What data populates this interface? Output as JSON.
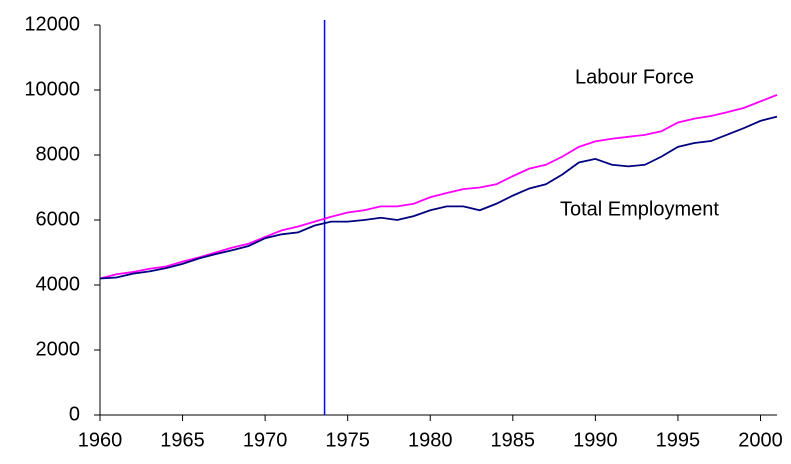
{
  "chart_data": {
    "type": "line",
    "x": [
      1960,
      1961,
      1962,
      1963,
      1964,
      1965,
      1966,
      1967,
      1968,
      1969,
      1970,
      1971,
      1972,
      1973,
      1974,
      1975,
      1976,
      1977,
      1978,
      1979,
      1980,
      1981,
      1982,
      1983,
      1984,
      1985,
      1986,
      1987,
      1988,
      1989,
      1990,
      1991,
      1992,
      1993,
      1994,
      1995,
      1996,
      1997,
      1998,
      1999,
      2000,
      2001
    ],
    "series": [
      {
        "name": "Labour Force",
        "color": "#ff00ff",
        "values": [
          4200,
          4330,
          4400,
          4500,
          4570,
          4720,
          4850,
          5000,
          5150,
          5270,
          5480,
          5680,
          5800,
          5950,
          6100,
          6230,
          6300,
          6420,
          6420,
          6500,
          6700,
          6830,
          6950,
          7000,
          7100,
          7350,
          7580,
          7700,
          7950,
          8250,
          8420,
          8500,
          8560,
          8620,
          8730,
          9000,
          9120,
          9200,
          9320,
          9450,
          9650,
          9850
        ]
      },
      {
        "name": "Total Employment",
        "color": "#000080",
        "values": [
          4200,
          4230,
          4350,
          4420,
          4520,
          4650,
          4820,
          4950,
          5070,
          5200,
          5440,
          5560,
          5620,
          5830,
          5950,
          5950,
          6000,
          6070,
          6000,
          6120,
          6300,
          6420,
          6420,
          6300,
          6500,
          6750,
          6970,
          7100,
          7400,
          7770,
          7880,
          7700,
          7650,
          7700,
          7950,
          8250,
          8370,
          8430,
          8630,
          8830,
          9050,
          9180
        ]
      }
    ],
    "xlim": [
      1960,
      2001
    ],
    "xticks": [
      1960,
      1965,
      1970,
      1975,
      1980,
      1985,
      1990,
      1995,
      2000
    ],
    "ylim": [
      0,
      12000
    ],
    "yticks": [
      0,
      2000,
      4000,
      6000,
      8000,
      10000,
      12000
    ],
    "vline": {
      "x": 1973.6,
      "color": "#0000ff"
    }
  }
}
